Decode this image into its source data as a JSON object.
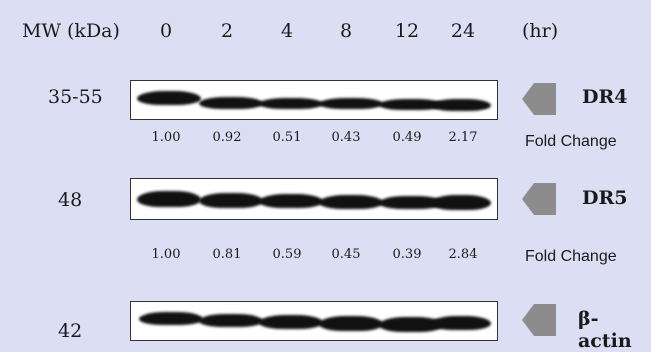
{
  "header": {
    "mw_label": "MW (kDa)",
    "timepoints": [
      "0",
      "2",
      "4",
      "8",
      "12",
      "24"
    ],
    "unit": "(hr)"
  },
  "blots": [
    {
      "protein": "DR4",
      "mw": "35-55",
      "fold_changes": [
        "1.00",
        "0.92",
        "0.51",
        "0.43",
        "0.49",
        "2.17"
      ],
      "band_intensity": [
        1.0,
        0.92,
        0.51,
        0.43,
        0.49,
        2.17
      ]
    },
    {
      "protein": "DR5",
      "mw": "48",
      "fold_changes": [
        "1.00",
        "0.81",
        "0.59",
        "0.45",
        "0.39",
        "2.84"
      ],
      "band_intensity": [
        1.0,
        0.81,
        0.59,
        0.45,
        0.39,
        2.84
      ]
    },
    {
      "protein": "β-actin",
      "mw": "42",
      "fold_changes": [],
      "band_intensity": [
        1,
        1,
        1,
        1,
        1,
        1
      ]
    }
  ],
  "fold_change_label": "Fold Change",
  "colors": {
    "background": "#dcdff4",
    "marker": "#8c8c8c",
    "band": "#111111"
  }
}
